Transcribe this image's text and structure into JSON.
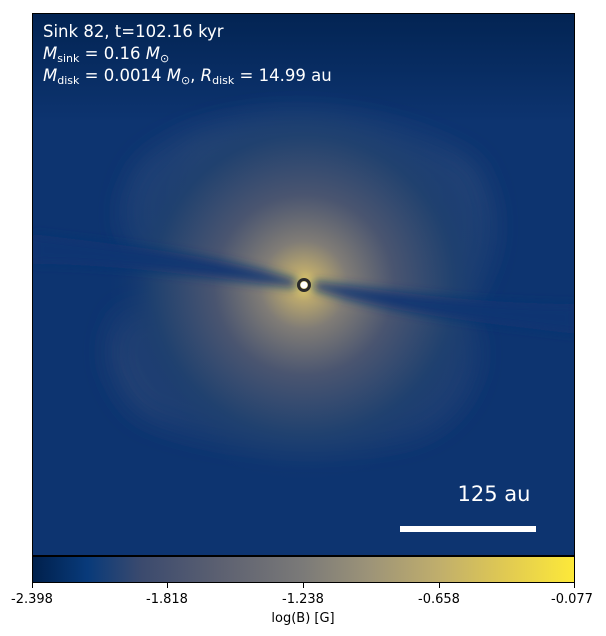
{
  "annotation": {
    "line1": "Sink 82, t=102.16 kyr",
    "sink_mass": "0.16",
    "disk_mass": "0.0014",
    "disk_radius": "14.99",
    "mass_unit_symbol": "M",
    "mass_unit_sub": "⊙",
    "radius_unit": "au",
    "sub_sink": "sink",
    "sub_disk": "disk",
    "R": "R"
  },
  "scale_bar": {
    "label": "125 au"
  },
  "colorbar": {
    "label": "log(B) [G]",
    "ticks": [
      "-2.398",
      "-1.818",
      "-1.238",
      "-0.658",
      "-0.077"
    ]
  },
  "colors": {
    "map_low": "#00204c",
    "map_high": "#fde939"
  }
}
